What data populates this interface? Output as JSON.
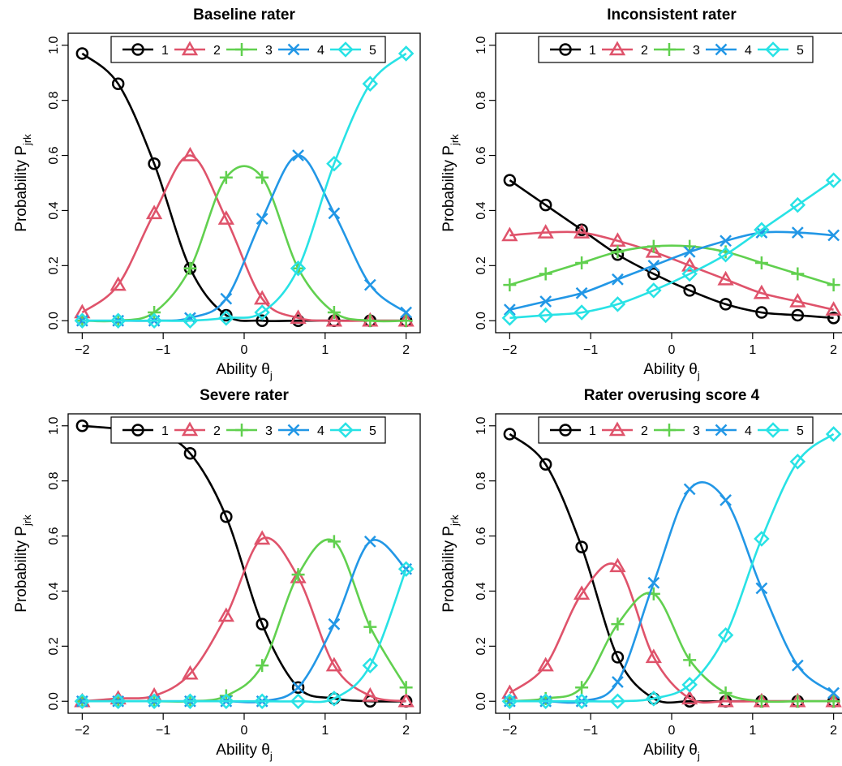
{
  "figure": {
    "series_colors": [
      "#000000",
      "#DF536B",
      "#61D04F",
      "#2297E6",
      "#28E2E5"
    ],
    "series_markers": [
      "circle",
      "triangle",
      "plus",
      "cross",
      "diamond"
    ]
  },
  "chart_data": [
    {
      "type": "line",
      "title": "Baseline rater",
      "xlabel": "Ability θ",
      "xlabel_sub": "j",
      "ylabel": "Probability P",
      "ylabel_sub": "jrk",
      "xlim": [
        -2,
        2
      ],
      "ylim": [
        0,
        1
      ],
      "xticks": [
        "−2",
        "−1",
        "0",
        "1",
        "2"
      ],
      "yticks": [
        "0.0",
        "0.2",
        "0.4",
        "0.6",
        "0.8",
        "1.0"
      ],
      "legend": [
        "1",
        "2",
        "3",
        "4",
        "5"
      ],
      "legend_position": "top",
      "x": [
        -2.0,
        -1.556,
        -1.111,
        -0.667,
        -0.222,
        0.222,
        0.667,
        1.111,
        1.556,
        2.0
      ],
      "series": [
        {
          "name": "1",
          "values": [
            0.97,
            0.86,
            0.57,
            0.19,
            0.02,
            0.0,
            0.0,
            0.0,
            0.0,
            0.0
          ]
        },
        {
          "name": "2",
          "values": [
            0.03,
            0.13,
            0.39,
            0.6,
            0.37,
            0.08,
            0.01,
            0.0,
            0.0,
            0.0
          ]
        },
        {
          "name": "3",
          "values": [
            0.0,
            0.0,
            0.03,
            0.19,
            0.52,
            0.52,
            0.19,
            0.03,
            0.0,
            0.0
          ]
        },
        {
          "name": "4",
          "values": [
            0.0,
            0.0,
            0.0,
            0.01,
            0.08,
            0.37,
            0.6,
            0.39,
            0.13,
            0.03
          ]
        },
        {
          "name": "5",
          "values": [
            0.0,
            0.0,
            0.0,
            0.0,
            0.01,
            0.03,
            0.19,
            0.57,
            0.86,
            0.97
          ]
        }
      ]
    },
    {
      "type": "line",
      "title": "Inconsistent rater",
      "xlabel": "Ability θ",
      "xlabel_sub": "j",
      "ylabel": "Probability P",
      "ylabel_sub": "jrk",
      "xlim": [
        -2,
        2
      ],
      "ylim": [
        0,
        1
      ],
      "xticks": [
        "−2",
        "−1",
        "0",
        "1",
        "2"
      ],
      "yticks": [
        "0.0",
        "0.2",
        "0.4",
        "0.6",
        "0.8",
        "1.0"
      ],
      "legend": [
        "1",
        "2",
        "3",
        "4",
        "5"
      ],
      "legend_position": "top",
      "x": [
        -2.0,
        -1.556,
        -1.111,
        -0.667,
        -0.222,
        0.222,
        0.667,
        1.111,
        1.556,
        2.0
      ],
      "series": [
        {
          "name": "1",
          "values": [
            0.51,
            0.42,
            0.33,
            0.24,
            0.17,
            0.11,
            0.06,
            0.03,
            0.02,
            0.01
          ]
        },
        {
          "name": "2",
          "values": [
            0.31,
            0.32,
            0.32,
            0.29,
            0.25,
            0.2,
            0.15,
            0.1,
            0.07,
            0.04
          ]
        },
        {
          "name": "3",
          "values": [
            0.13,
            0.17,
            0.21,
            0.25,
            0.27,
            0.27,
            0.25,
            0.21,
            0.17,
            0.13
          ]
        },
        {
          "name": "4",
          "values": [
            0.04,
            0.07,
            0.1,
            0.15,
            0.2,
            0.25,
            0.29,
            0.32,
            0.32,
            0.31
          ]
        },
        {
          "name": "5",
          "values": [
            0.01,
            0.02,
            0.03,
            0.06,
            0.11,
            0.17,
            0.24,
            0.33,
            0.42,
            0.51
          ]
        }
      ]
    },
    {
      "type": "line",
      "title": "Severe rater",
      "xlabel": "Ability θ",
      "xlabel_sub": "j",
      "ylabel": "Probability P",
      "ylabel_sub": "jrk",
      "xlim": [
        -2,
        2
      ],
      "ylim": [
        0,
        1
      ],
      "xticks": [
        "−2",
        "−1",
        "0",
        "1",
        "2"
      ],
      "yticks": [
        "0.0",
        "0.2",
        "0.4",
        "0.6",
        "0.8",
        "1.0"
      ],
      "legend": [
        "1",
        "2",
        "3",
        "4",
        "5"
      ],
      "legend_position": "top",
      "x": [
        -2.0,
        -1.556,
        -1.111,
        -0.667,
        -0.222,
        0.222,
        0.667,
        1.111,
        1.556,
        2.0
      ],
      "series": [
        {
          "name": "1",
          "values": [
            1.0,
            0.99,
            0.98,
            0.9,
            0.67,
            0.28,
            0.05,
            0.01,
            0.0,
            0.0
          ]
        },
        {
          "name": "2",
          "values": [
            0.0,
            0.01,
            0.02,
            0.1,
            0.31,
            0.59,
            0.45,
            0.13,
            0.02,
            0.0
          ]
        },
        {
          "name": "3",
          "values": [
            0.0,
            0.0,
            0.0,
            0.0,
            0.02,
            0.13,
            0.46,
            0.58,
            0.27,
            0.05
          ]
        },
        {
          "name": "4",
          "values": [
            0.0,
            0.0,
            0.0,
            0.0,
            0.0,
            0.0,
            0.05,
            0.28,
            0.58,
            0.48
          ]
        },
        {
          "name": "5",
          "values": [
            0.0,
            0.0,
            0.0,
            0.0,
            0.0,
            0.0,
            0.0,
            0.01,
            0.13,
            0.48
          ]
        }
      ]
    },
    {
      "type": "line",
      "title": "Rater overusing score 4",
      "xlabel": "Ability θ",
      "xlabel_sub": "j",
      "ylabel": "Probability P",
      "ylabel_sub": "jrk",
      "xlim": [
        -2,
        2
      ],
      "ylim": [
        0,
        1
      ],
      "xticks": [
        "−2",
        "−1",
        "0",
        "1",
        "2"
      ],
      "yticks": [
        "0.0",
        "0.2",
        "0.4",
        "0.6",
        "0.8",
        "1.0"
      ],
      "legend": [
        "1",
        "2",
        "3",
        "4",
        "5"
      ],
      "legend_position": "top",
      "x": [
        -2.0,
        -1.556,
        -1.111,
        -0.667,
        -0.222,
        0.222,
        0.667,
        1.111,
        1.556,
        2.0
      ],
      "series": [
        {
          "name": "1",
          "values": [
            0.97,
            0.86,
            0.56,
            0.16,
            0.01,
            0.0,
            0.0,
            0.0,
            0.0,
            0.0
          ]
        },
        {
          "name": "2",
          "values": [
            0.03,
            0.13,
            0.39,
            0.49,
            0.16,
            0.01,
            0.0,
            0.0,
            0.0,
            0.0
          ]
        },
        {
          "name": "3",
          "values": [
            0.0,
            0.01,
            0.05,
            0.28,
            0.39,
            0.15,
            0.03,
            0.0,
            0.0,
            0.0
          ]
        },
        {
          "name": "4",
          "values": [
            0.0,
            0.0,
            0.0,
            0.07,
            0.43,
            0.77,
            0.73,
            0.41,
            0.13,
            0.03
          ]
        },
        {
          "name": "5",
          "values": [
            0.0,
            0.0,
            0.0,
            0.0,
            0.01,
            0.06,
            0.24,
            0.59,
            0.87,
            0.97
          ]
        }
      ]
    }
  ]
}
